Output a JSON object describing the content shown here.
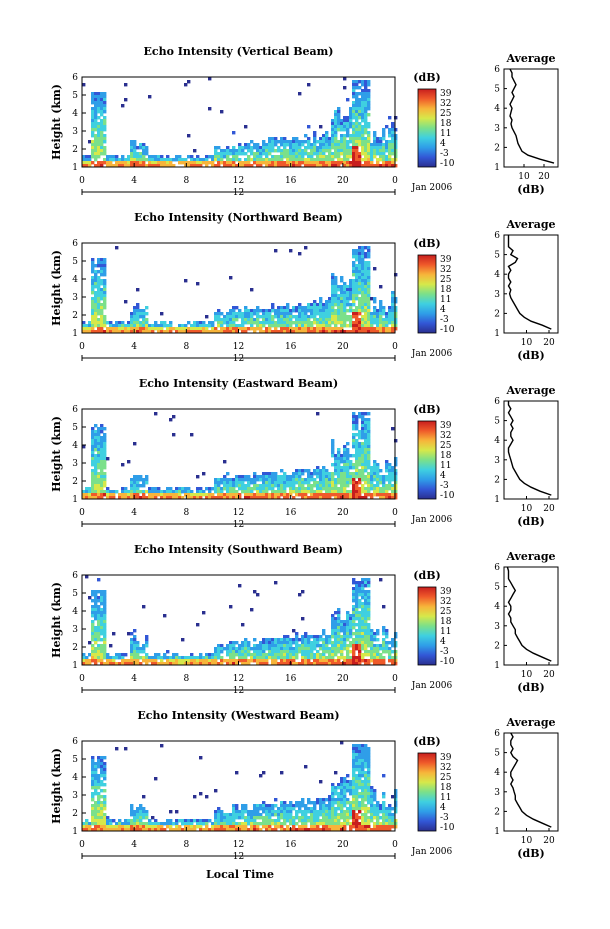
{
  "figure": {
    "xlabel": "Local Time",
    "ylabel": "Height (km)",
    "date_label": "Jan 2006",
    "day_label": "12",
    "colorbar_unit": "(dB)",
    "avg_title": "Average",
    "avg_xlabel": "(dB)",
    "x_ticks": [
      "0",
      "4",
      "8",
      "12",
      "16",
      "20",
      "0"
    ],
    "y_ticks": [
      "1",
      "2",
      "3",
      "4",
      "5",
      "6"
    ],
    "colorbar_ticks": [
      "39",
      "32",
      "25",
      "18",
      "11",
      "4",
      "-3",
      "-10"
    ],
    "colors": {
      "scale": [
        "#2a2f8f",
        "#3257d6",
        "#2f9ee8",
        "#3fd0e0",
        "#7be08a",
        "#d6e84a",
        "#f7b43a",
        "#ef5a2a",
        "#c81e1e"
      ]
    }
  },
  "chart_data": [
    {
      "type": "heatmap",
      "title": "Echo Intensity (Vertical Beam)",
      "xlabel": "Local Time",
      "ylabel": "Height (km)",
      "xlim": [
        0,
        24
      ],
      "ylim": [
        1,
        6
      ],
      "clim": [
        -10,
        39
      ],
      "x_ticks": [
        0,
        4,
        8,
        12,
        16,
        20,
        24
      ],
      "profile": {
        "title": "Average",
        "xlabel": "(dB)",
        "x_ticks": [
          10,
          20
        ],
        "xlim": [
          0,
          27
        ],
        "height": [
          1.2,
          1.4,
          1.6,
          1.8,
          2.0,
          2.2,
          2.4,
          2.6,
          2.8,
          3.0,
          3.2,
          3.4,
          3.6,
          3.8,
          4.0,
          4.2,
          4.4,
          4.6,
          4.8,
          5.0,
          5.2,
          5.4,
          5.6,
          5.8,
          6.0
        ],
        "value": [
          25,
          18,
          12,
          9,
          8,
          7,
          6.5,
          6,
          5,
          4,
          3.5,
          4,
          3,
          3.5,
          4,
          3,
          4,
          5,
          4,
          5,
          6,
          5,
          4,
          4,
          3
        ]
      }
    },
    {
      "type": "heatmap",
      "title": "Echo Intensity (Northward Beam)",
      "xlabel": "Local Time",
      "ylabel": "Height (km)",
      "xlim": [
        0,
        24
      ],
      "ylim": [
        1,
        6
      ],
      "clim": [
        -10,
        39
      ],
      "x_ticks": [
        0,
        4,
        8,
        12,
        16,
        20,
        24
      ],
      "profile": {
        "title": "Average",
        "xlabel": "(dB)",
        "x_ticks": [
          10,
          20
        ],
        "xlim": [
          0,
          24
        ],
        "height": [
          1.2,
          1.4,
          1.6,
          1.8,
          2.0,
          2.2,
          2.4,
          2.6,
          2.8,
          3.0,
          3.2,
          3.4,
          3.6,
          3.8,
          4.0,
          4.2,
          4.4,
          4.6,
          4.8,
          5.0,
          5.2,
          5.4,
          5.6,
          5.8,
          6.0
        ],
        "value": [
          21,
          17,
          12,
          9,
          7,
          6,
          5,
          4,
          3,
          2.5,
          3,
          2,
          3,
          2,
          2,
          3,
          2,
          5,
          6,
          3,
          4,
          2,
          2,
          2,
          2
        ]
      }
    },
    {
      "type": "heatmap",
      "title": "Echo Intensity (Eastward Beam)",
      "xlabel": "Local Time",
      "ylabel": "Height (km)",
      "xlim": [
        0,
        24
      ],
      "ylim": [
        1,
        6
      ],
      "clim": [
        -10,
        39
      ],
      "x_ticks": [
        0,
        4,
        8,
        12,
        16,
        20,
        24
      ],
      "profile": {
        "title": "Average",
        "xlabel": "(dB)",
        "x_ticks": [
          10,
          20
        ],
        "xlim": [
          0,
          24
        ],
        "height": [
          1.2,
          1.4,
          1.6,
          1.8,
          2.0,
          2.2,
          2.4,
          2.6,
          2.8,
          3.0,
          3.2,
          3.4,
          3.6,
          3.8,
          4.0,
          4.2,
          4.4,
          4.6,
          4.8,
          5.0,
          5.2,
          5.4,
          5.6,
          5.8,
          6.0
        ],
        "value": [
          21,
          16,
          12,
          9,
          7,
          6,
          5,
          4,
          3.5,
          3,
          2.5,
          2,
          2,
          3,
          4,
          3,
          3,
          4,
          3,
          4,
          3,
          2,
          3,
          2,
          2
        ]
      }
    },
    {
      "type": "heatmap",
      "title": "Echo Intensity (Southward Beam)",
      "xlabel": "Local Time",
      "ylabel": "Height (km)",
      "xlim": [
        0,
        24
      ],
      "ylim": [
        1,
        6
      ],
      "clim": [
        -10,
        39
      ],
      "x_ticks": [
        0,
        4,
        8,
        12,
        16,
        20,
        24
      ],
      "profile": {
        "title": "Average",
        "xlabel": "(dB)",
        "x_ticks": [
          10,
          20
        ],
        "xlim": [
          0,
          24
        ],
        "height": [
          1.2,
          1.4,
          1.6,
          1.8,
          2.0,
          2.2,
          2.4,
          2.6,
          2.8,
          3.0,
          3.2,
          3.4,
          3.6,
          3.8,
          4.0,
          4.2,
          4.4,
          4.6,
          4.8,
          5.0,
          5.2,
          5.4,
          5.6,
          5.8,
          6.0
        ],
        "value": [
          21,
          17,
          13,
          10,
          8,
          7,
          6,
          5,
          5,
          4,
          3,
          3,
          2,
          3,
          3,
          2,
          3,
          4,
          5,
          4,
          3,
          2,
          2,
          2,
          1.5
        ]
      }
    },
    {
      "type": "heatmap",
      "title": "Echo Intensity (Westward Beam)",
      "xlabel": "Local Time",
      "ylabel": "Height (km)",
      "xlim": [
        0,
        24
      ],
      "ylim": [
        1,
        6
      ],
      "clim": [
        -10,
        39
      ],
      "x_ticks": [
        0,
        4,
        8,
        12,
        16,
        20,
        24
      ],
      "profile": {
        "title": "Average",
        "xlabel": "(dB)",
        "x_ticks": [
          10,
          20
        ],
        "xlim": [
          0,
          24
        ],
        "height": [
          1.2,
          1.4,
          1.6,
          1.8,
          2.0,
          2.2,
          2.4,
          2.6,
          2.8,
          3.0,
          3.2,
          3.4,
          3.6,
          3.8,
          4.0,
          4.2,
          4.4,
          4.6,
          4.8,
          5.0,
          5.2,
          5.4,
          5.6,
          5.8,
          6.0
        ],
        "value": [
          21,
          17,
          13,
          10,
          8,
          7,
          6,
          5,
          5,
          4.5,
          4,
          3,
          4,
          3,
          3,
          4,
          5,
          6,
          4,
          3,
          4,
          3,
          3,
          4,
          3
        ]
      }
    }
  ]
}
